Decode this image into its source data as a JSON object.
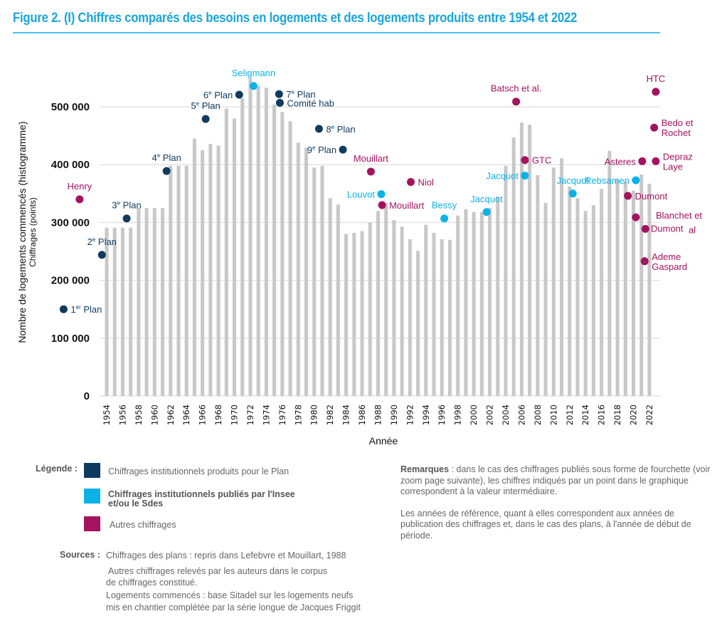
{
  "header": {
    "title": "Figure 2. (I) Chiffres comparés des besoins en logements et des logements produits entre 1954 et 2022"
  },
  "colors": {
    "plan": "#0f3b5f",
    "insee": "#0ab2e6",
    "autres": "#a3135f",
    "bars": "#c8c8c8",
    "grid": "#e3e3e3",
    "title": "#1aa6d9"
  },
  "chart_data": {
    "type": "bar",
    "title": "Figure 2. (I) Chiffres comparés des besoins en logements et des logements produits entre 1954 et 2022",
    "xlabel": "Année",
    "ylabel": "Nombre de logements commencés (histogramme)",
    "ylabel_sub": "Chiffrages (points)",
    "ylim": [
      0,
      550000
    ],
    "yticks": [
      0,
      100000,
      200000,
      300000,
      400000,
      500000
    ],
    "ytick_labels": [
      "0",
      "100 000",
      "200 000",
      "300 000",
      "400 000",
      "500 000"
    ],
    "xlim": [
      1946,
      2024
    ],
    "xticks": [
      1954,
      1956,
      1958,
      1960,
      1962,
      1964,
      1966,
      1968,
      1970,
      1972,
      1974,
      1976,
      1978,
      1980,
      1982,
      1984,
      1986,
      1988,
      1990,
      1992,
      1994,
      1996,
      1998,
      2000,
      2002,
      2004,
      2006,
      2008,
      2010,
      2012,
      2014,
      2016,
      2018,
      2020,
      2022
    ],
    "grid": true,
    "bars": {
      "name": "Logements commencés",
      "x": [
        1954,
        1955,
        1956,
        1957,
        1958,
        1959,
        1960,
        1961,
        1962,
        1963,
        1964,
        1965,
        1966,
        1967,
        1968,
        1969,
        1970,
        1971,
        1972,
        1973,
        1974,
        1975,
        1976,
        1977,
        1978,
        1979,
        1980,
        1981,
        1982,
        1983,
        1984,
        1985,
        1986,
        1987,
        1988,
        1989,
        1990,
        1991,
        1992,
        1993,
        1994,
        1995,
        1996,
        1997,
        1998,
        1999,
        2000,
        2001,
        2002,
        2003,
        2004,
        2005,
        2006,
        2007,
        2008,
        2009,
        2010,
        2011,
        2012,
        2013,
        2014,
        2015,
        2016,
        2017,
        2018,
        2019,
        2020,
        2021,
        2022
      ],
      "values": [
        291000,
        291000,
        291000,
        291000,
        325000,
        325000,
        325000,
        325000,
        398000,
        398000,
        398000,
        445000,
        425000,
        436000,
        433000,
        497000,
        480000,
        515000,
        549000,
        537000,
        533000,
        504000,
        491000,
        475000,
        438000,
        429000,
        395000,
        398000,
        342000,
        331000,
        280000,
        282000,
        285000,
        300000,
        320000,
        334000,
        304000,
        293000,
        271000,
        251000,
        296000,
        282000,
        271000,
        270000,
        312000,
        323000,
        318000,
        318000,
        325000,
        345000,
        398000,
        447000,
        473000,
        469000,
        382000,
        334000,
        395000,
        411000,
        362000,
        342000,
        320000,
        330000,
        358000,
        424000,
        374000,
        371000,
        355000,
        383000,
        367000
      ]
    },
    "legend": [
      {
        "key": "plan",
        "label": "Chiffrages institutionnels produits pour le Plan"
      },
      {
        "key": "insee",
        "label": "Chiffrages institutionnels publiés par l'Insee et/ou le Sdes"
      },
      {
        "key": "autres",
        "label": "Autres chiffrages"
      }
    ],
    "points": [
      {
        "label": "1er Plan",
        "year": 1948.6,
        "value": 150000,
        "category": "plan",
        "label_pos": "right"
      },
      {
        "label": "Henry",
        "year": 1950.6,
        "value": 340000,
        "category": "autres",
        "label_pos": "above"
      },
      {
        "label": "2e Plan",
        "year": 1953.4,
        "value": 244000,
        "category": "plan",
        "label_pos": "above"
      },
      {
        "label": "3e Plan",
        "year": 1956.5,
        "value": 307000,
        "category": "plan",
        "label_pos": "above"
      },
      {
        "label": "4e Plan",
        "year": 1961.5,
        "value": 389000,
        "category": "plan",
        "label_pos": "above"
      },
      {
        "label": "5e Plan",
        "year": 1966.4,
        "value": 479000,
        "category": "plan",
        "label_pos": "above"
      },
      {
        "label": "6e Plan",
        "year": 1970.6,
        "value": 521000,
        "category": "plan",
        "label_pos": "left"
      },
      {
        "label": "Seligmann",
        "year": 1972.4,
        "value": 536000,
        "category": "insee",
        "label_pos": "above"
      },
      {
        "label": "7e Plan",
        "year": 1975.6,
        "value": 522000,
        "category": "plan",
        "label_pos": "right"
      },
      {
        "label": "Comité hab",
        "year": 1975.7,
        "value": 507000,
        "category": "plan",
        "label_pos": "right"
      },
      {
        "label": "8e Plan",
        "year": 1980.6,
        "value": 462000,
        "category": "plan",
        "label_pos": "right"
      },
      {
        "label": "9e Plan",
        "year": 1983.6,
        "value": 426000,
        "category": "plan",
        "label_pos": "left"
      },
      {
        "label": "Mouillart",
        "year": 1987.1,
        "value": 388000,
        "category": "autres",
        "label_pos": "above"
      },
      {
        "label": "Louvot",
        "year": 1988.4,
        "value": 349000,
        "category": "insee",
        "label_pos": "left"
      },
      {
        "label": "Mouillart",
        "year": 1988.5,
        "value": 330000,
        "category": "autres",
        "label_pos": "right"
      },
      {
        "label": "Niol",
        "year": 1992.1,
        "value": 370000,
        "category": "autres",
        "label_pos": "right"
      },
      {
        "label": "Bessy",
        "year": 1996.3,
        "value": 307000,
        "category": "insee",
        "label_pos": "above"
      },
      {
        "label": "Jacquot",
        "year": 2001.6,
        "value": 318000,
        "category": "insee",
        "label_pos": "above"
      },
      {
        "label": "Batsch et al.",
        "year": 2005.3,
        "value": 509000,
        "category": "autres",
        "label_pos": "above"
      },
      {
        "label": "GTC",
        "year": 2006.4,
        "value": 408000,
        "category": "autres",
        "label_pos": "right"
      },
      {
        "label": "Jacquot",
        "year": 2006.4,
        "value": 381000,
        "category": "insee",
        "label_pos": "left"
      },
      {
        "label": "Jacquot",
        "year": 2012.4,
        "value": 350000,
        "category": "insee",
        "label_pos": "above"
      },
      {
        "label": "Dumont",
        "year": 2019.3,
        "value": 346000,
        "category": "autres",
        "label_pos": "right"
      },
      {
        "label": "Rebsamen",
        "year": 2020.3,
        "value": 373000,
        "category": "insee",
        "label_pos": "left"
      },
      {
        "label": "Blanchet et Dumont al",
        "year": 2020.3,
        "value": 309000,
        "category": "autres",
        "label_pos": "none"
      },
      {
        "label": "Asteres",
        "year": 2021.1,
        "value": 406000,
        "category": "autres",
        "label_pos": "left"
      },
      {
        "label": "",
        "year": 2021.5,
        "value": 289000,
        "category": "autres",
        "label_pos": "none"
      },
      {
        "label": "Ademe Gaspard",
        "year": 2021.4,
        "value": 233000,
        "category": "autres",
        "label_pos": "right"
      },
      {
        "label": "HTC",
        "year": 2022.8,
        "value": 526000,
        "category": "autres",
        "label_pos": "above"
      },
      {
        "label": "Bedo et Rochet",
        "year": 2022.6,
        "value": 464000,
        "category": "autres",
        "label_pos": "right"
      },
      {
        "label": "Depraz Laye",
        "year": 2022.8,
        "value": 406000,
        "category": "autres",
        "label_pos": "right"
      }
    ],
    "extra_labels": [
      {
        "text": "Blanchet et",
        "anchor_point": 24
      },
      {
        "text": "Dumont",
        "anchor_point": 26
      },
      {
        "text": "al",
        "anchor_point": 26
      }
    ]
  },
  "legend_section": {
    "title": "Légende :",
    "items": [
      "Chiffrages institutionnels produits pour le Plan",
      "Chiffrages institutionnels publiés par l'Insee",
      "et/ou le Sdes",
      "Autres chiffrages"
    ]
  },
  "sources": {
    "title": "Sources :",
    "lines": [
      "Chiffrages des plans : repris dans Lefebvre et Mouillart, 1988",
      "Autres chiffrages relevés par les auteurs dans le corpus",
      "de chiffrages constitué.",
      "Logements commencés : base Sitadel sur les logements neufs",
      "mis en chantier complétée par la série longue de Jacques Friggit"
    ]
  },
  "remarks": {
    "title": "Remarques",
    "p1": " : dans le cas des chiffrages publiés sous forme de fourchette (voir zoom page suivante), les chiffres indiqués par un point dans le graphique correspondent à la valeur intermédiaire.",
    "p2": "Les années de référence, quant à elles correspondent aux années de publication des chiffrages et, dans le cas des plans, à l'année de début de période."
  }
}
